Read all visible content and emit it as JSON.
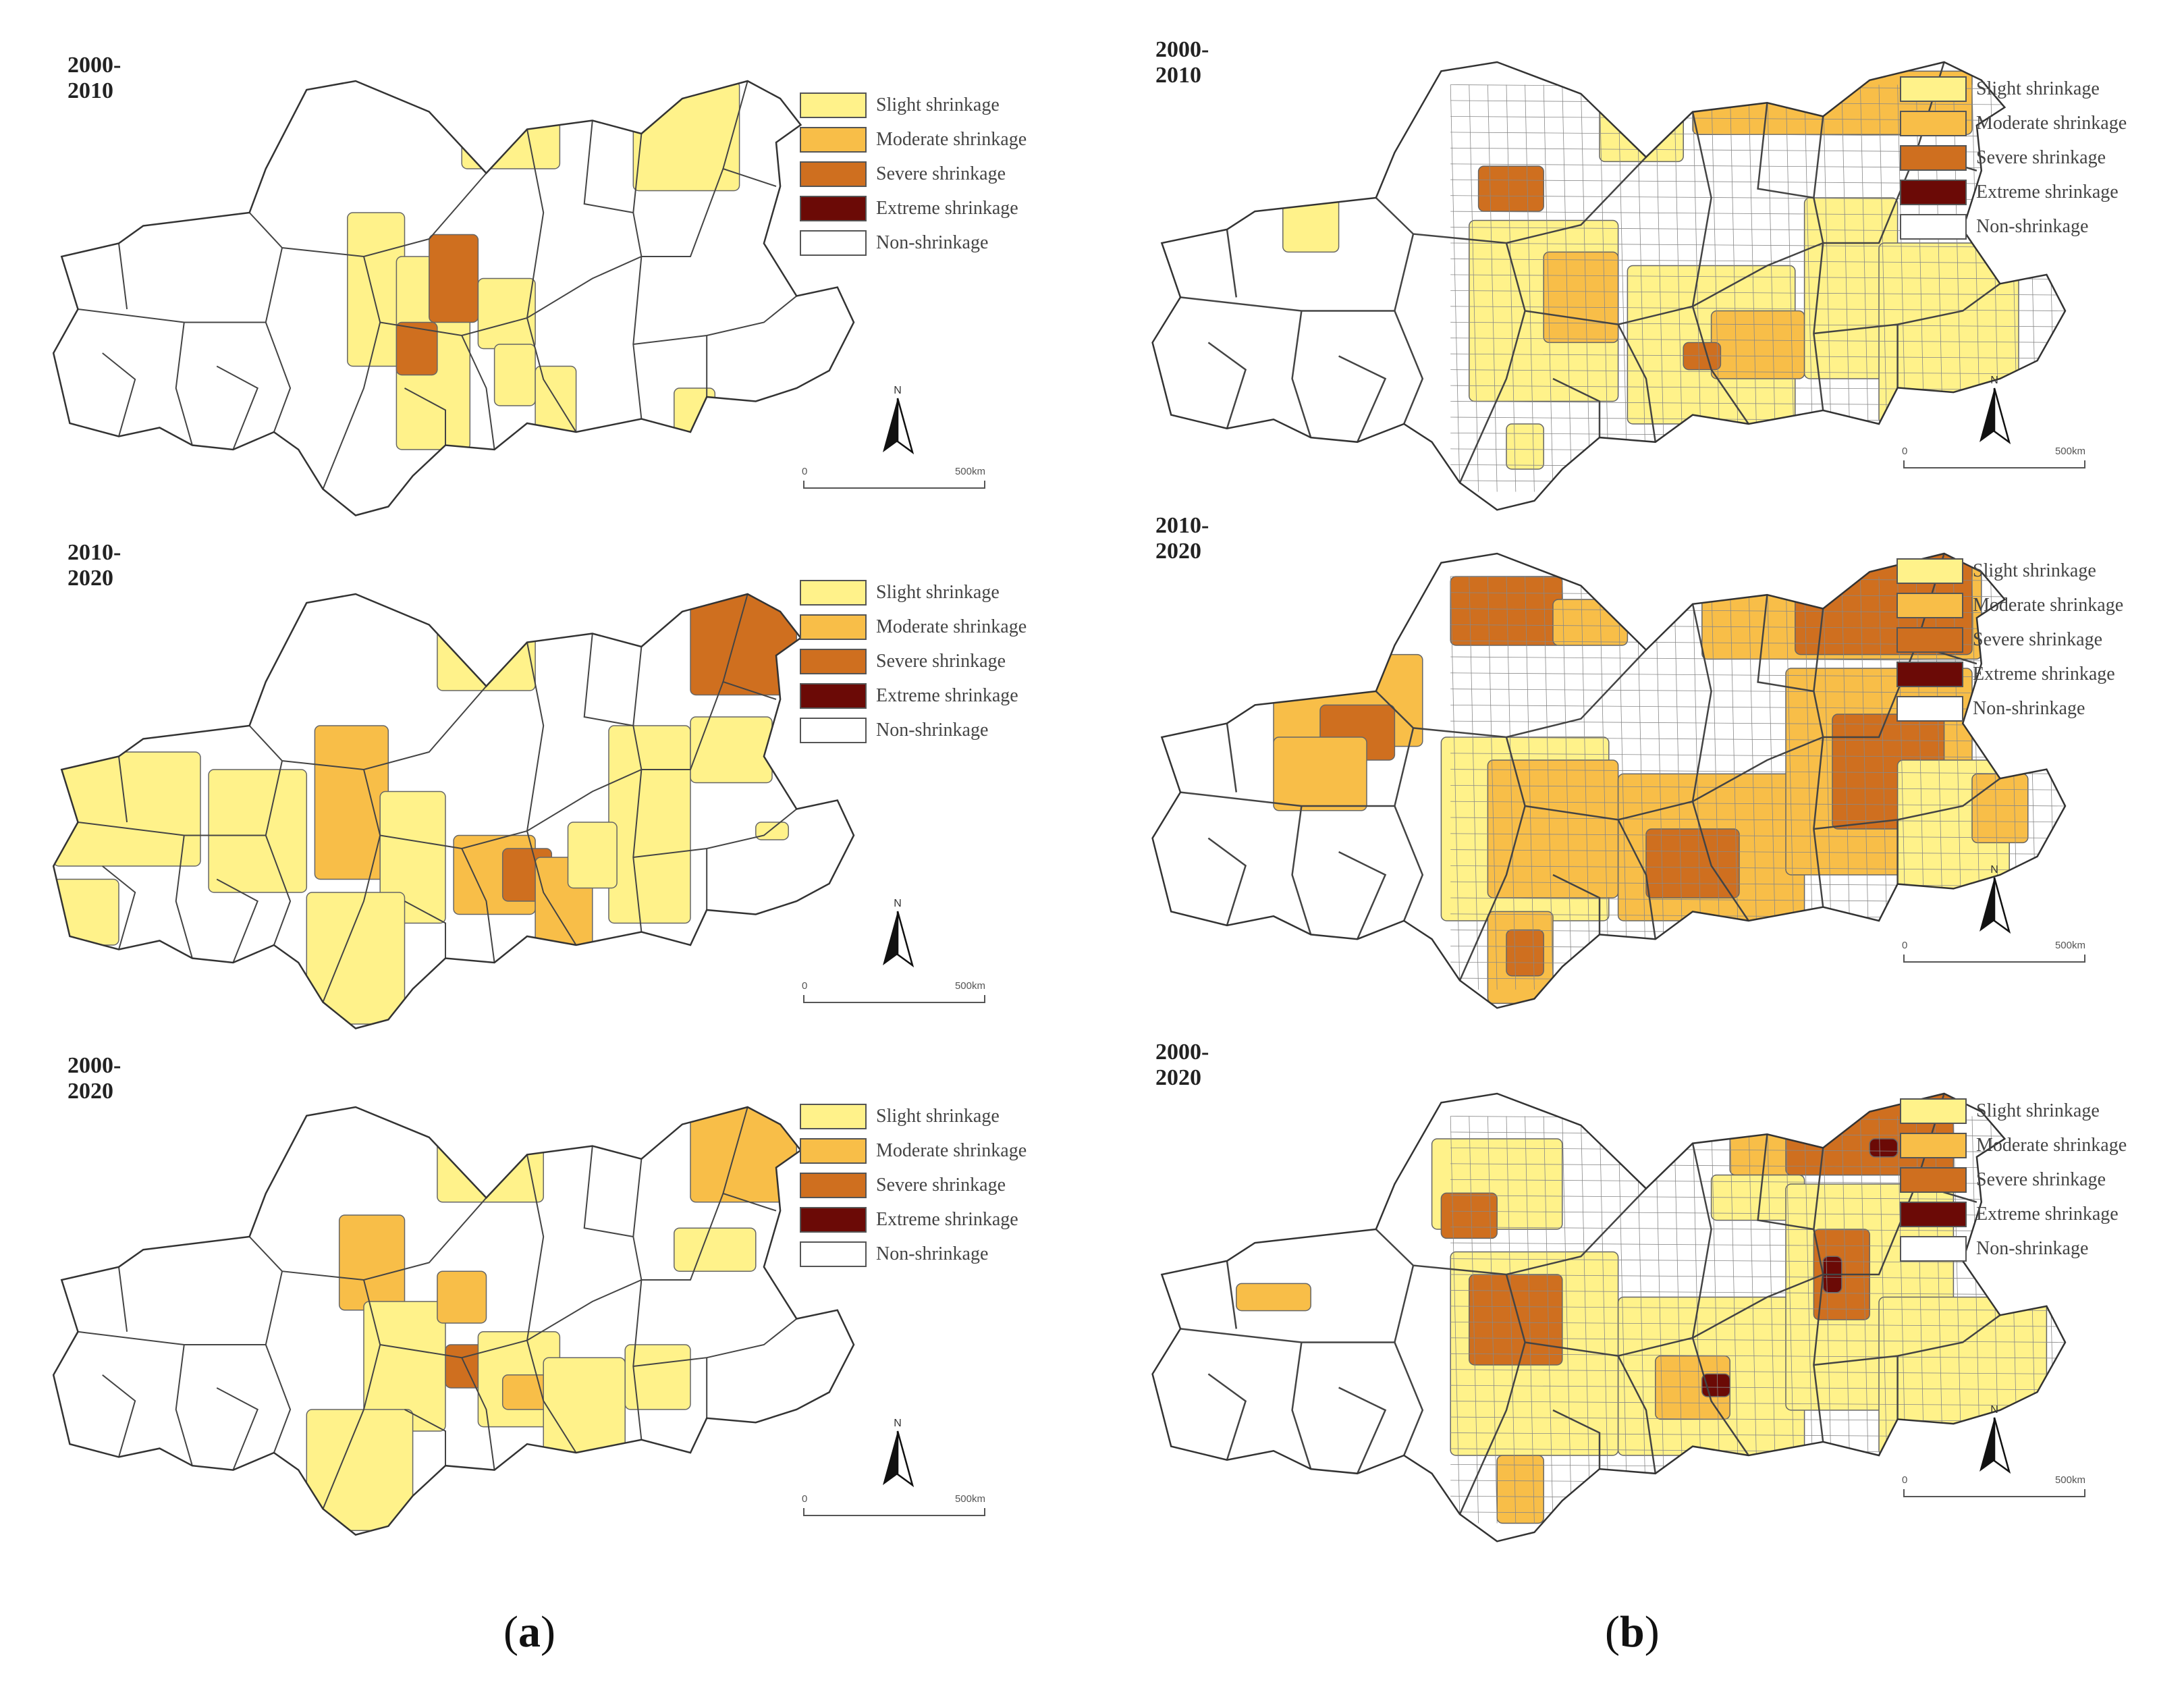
{
  "legend_items": [
    {
      "label": "Slight shrinkage",
      "color": "#fff28a"
    },
    {
      "label": "Moderate shrinkage",
      "color": "#f8be48"
    },
    {
      "label": "Severe shrinkage",
      "color": "#cf6f1f"
    },
    {
      "label": "Extreme shrinkage",
      "color": "#6b0a06"
    },
    {
      "label": "Non-shrinkage",
      "color": "#ffffff"
    }
  ],
  "north_label": "N",
  "scale": {
    "zero": "0",
    "end": "500km"
  },
  "panels": [
    {
      "period": "2000-2010",
      "level": "county",
      "summary": [
        "slight",
        "moderate",
        "severe",
        "non"
      ]
    },
    {
      "period": "2010-2020",
      "level": "county",
      "summary": [
        "slight",
        "moderate",
        "severe",
        "non"
      ]
    },
    {
      "period": "2000-2020",
      "level": "county",
      "summary": [
        "slight",
        "moderate",
        "severe",
        "non"
      ]
    },
    {
      "period": "2000-2010",
      "level": "township",
      "summary": [
        "slight",
        "moderate",
        "severe",
        "non"
      ]
    },
    {
      "period": "2010-2020",
      "level": "township",
      "summary": [
        "slight",
        "moderate",
        "severe",
        "extreme",
        "non"
      ]
    },
    {
      "period": "2000-2020",
      "level": "township",
      "summary": [
        "slight",
        "moderate",
        "severe",
        "extreme",
        "non"
      ]
    }
  ],
  "captions": {
    "a": {
      "open": "(",
      "letter": "a",
      "close": ")"
    },
    "b": {
      "open": "(",
      "letter": "b",
      "close": ")"
    }
  }
}
